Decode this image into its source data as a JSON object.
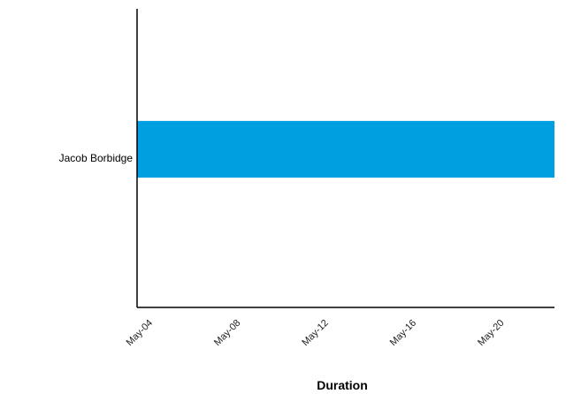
{
  "chart_data": {
    "type": "bar",
    "orientation": "horizontal",
    "categories": [
      "Jacob Borbidge"
    ],
    "series": [
      {
        "color": "#009fdf",
        "values": [
          {
            "start": "May-04",
            "end": "May-23"
          }
        ]
      }
    ],
    "xlabel": "Duration",
    "ylabel": "",
    "title": "",
    "x_ticks": [
      "May-04",
      "May-08",
      "May-12",
      "May-16",
      "May-20"
    ],
    "xlim": [
      "May-04",
      "May-23"
    ],
    "grid": false,
    "legend": "none"
  }
}
